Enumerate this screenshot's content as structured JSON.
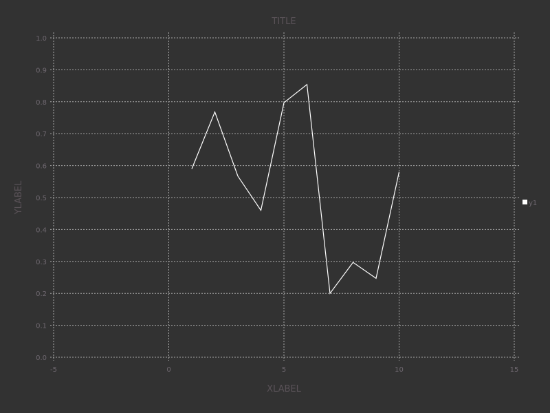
{
  "chart_data": {
    "type": "line",
    "title": "TITLE",
    "xlabel": "XLABEL",
    "ylabel": "YLABEL",
    "xlim": [
      -5,
      15
    ],
    "ylim": [
      0,
      1
    ],
    "xticks": [
      -5,
      0,
      5,
      10,
      15
    ],
    "xtick_labels": [
      "-5",
      "0",
      "5",
      "10",
      "15"
    ],
    "yticks": [
      0,
      0.1,
      0.2,
      0.3,
      0.4,
      0.5,
      0.6,
      0.7,
      0.8,
      0.9,
      1.0
    ],
    "ytick_labels": [
      "0.0",
      "0.1",
      "0.2",
      "0.3",
      "0.4",
      "0.5",
      "0.6",
      "0.7",
      "0.8",
      "0.9",
      "1.0"
    ],
    "grid": true,
    "legend_position": "right",
    "series": [
      {
        "name": "y1",
        "color": "#ffffff",
        "x": [
          1,
          2,
          3,
          4,
          5,
          6,
          7,
          8,
          9,
          10
        ],
        "y": [
          0.59,
          0.768,
          0.567,
          0.46,
          0.797,
          0.854,
          0.2,
          0.297,
          0.247,
          0.58
        ]
      }
    ],
    "colors": {
      "background": "#323232",
      "grid": "#a8a8a8",
      "text": "#6f6870"
    }
  }
}
